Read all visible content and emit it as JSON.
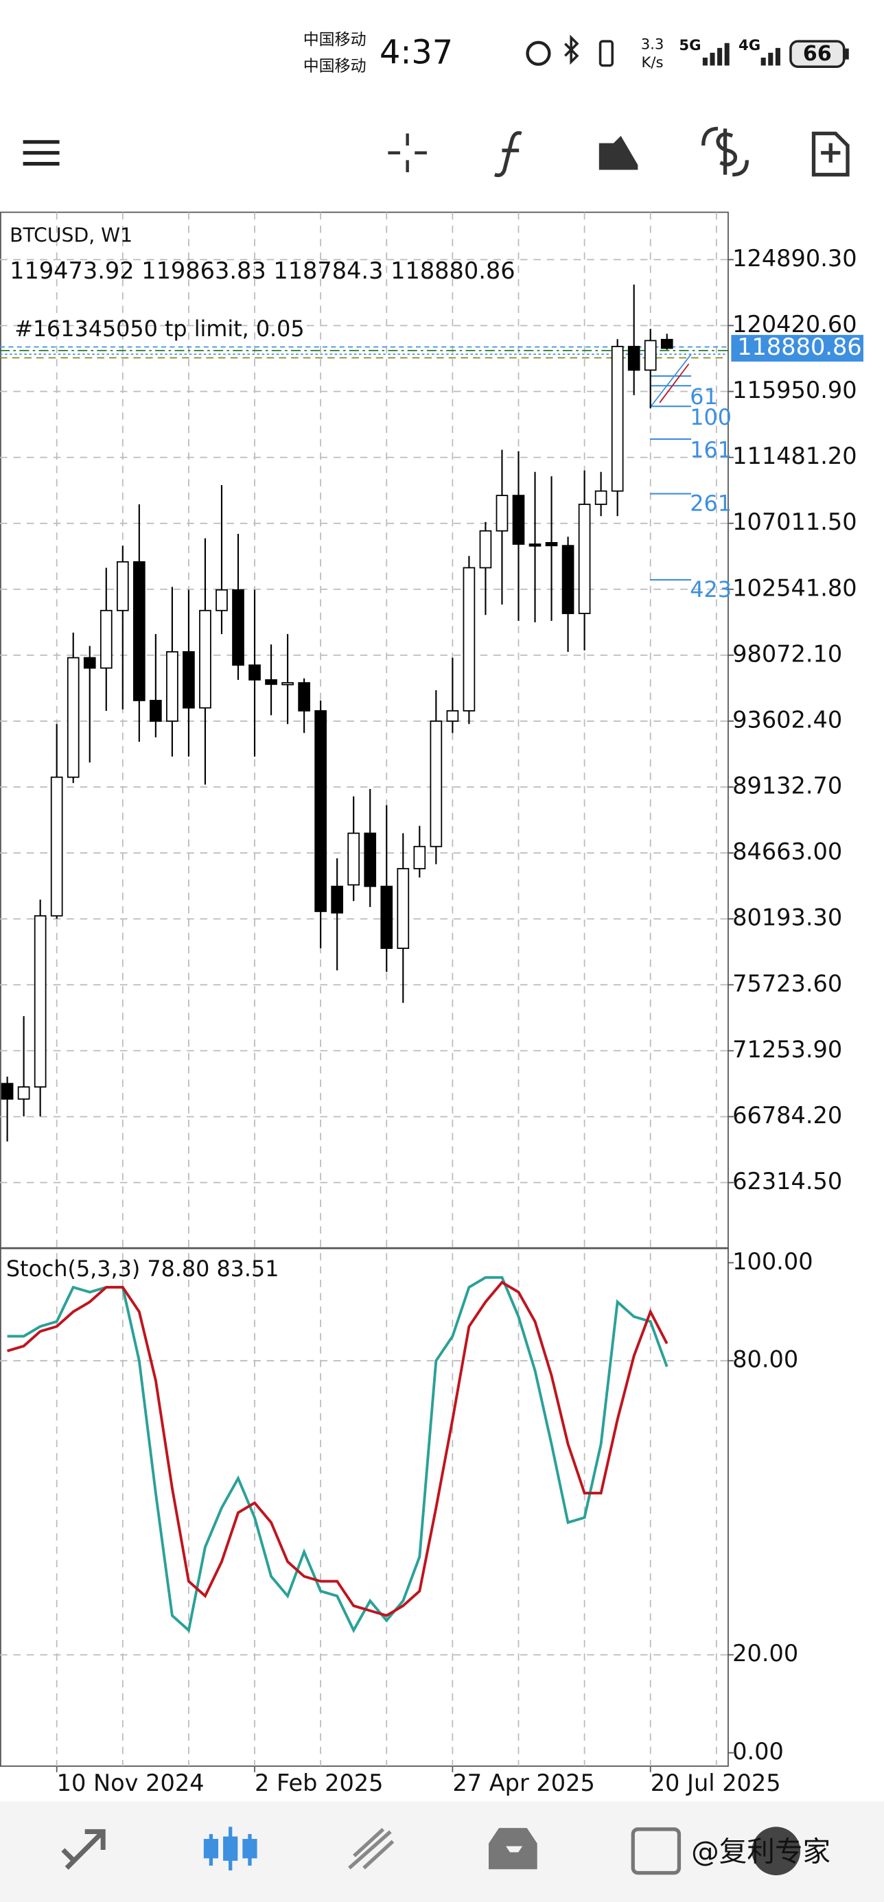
{
  "status_bar": {
    "carrier_1": "中国移动",
    "carrier_2": "中国移动",
    "time": "4:37",
    "speed": "3.3",
    "speed_unit": "K/s",
    "net_1": "5G",
    "net_2": "4G",
    "battery": "66"
  },
  "chart_data": [
    {
      "type": "candlestick",
      "symbol": "BTCUSD, W1",
      "order_label": "#161345050 tp limit, 0.05",
      "categories": [
        null,
        null,
        null,
        "10 Nov 2024",
        null,
        null,
        null,
        null,
        null,
        null,
        null,
        null,
        null,
        null,
        null,
        "2 Feb 2025",
        null,
        null,
        null,
        null,
        null,
        null,
        null,
        null,
        null,
        null,
        null,
        "27 Apr 2025",
        null,
        null,
        null,
        null,
        null,
        null,
        null,
        null,
        null,
        null,
        null,
        "20 Jul 2025",
        null
      ],
      "open": [
        69030,
        67980,
        68800,
        80400,
        89800,
        97900,
        97200,
        101100,
        104400,
        95000,
        93600,
        98300,
        94500,
        101100,
        102500,
        97400,
        96400,
        96100,
        96200,
        94300,
        82400,
        82500,
        86000,
        82400,
        78200,
        83600,
        85100,
        93600,
        94300,
        104000,
        106500,
        108900,
        105600,
        105700,
        105500,
        100900,
        108300,
        109200,
        119000,
        117400,
        119473.92
      ],
      "high": [
        69500,
        73600,
        81500,
        93400,
        99600,
        98700,
        104000,
        105500,
        108300,
        99500,
        102700,
        102500,
        106000,
        109600,
        106300,
        102500,
        98800,
        99500,
        96500,
        95000,
        84300,
        88500,
        89000,
        87900,
        86000,
        86500,
        95700,
        97900,
        104800,
        107100,
        112000,
        111900,
        110500,
        110200,
        106100,
        110600,
        110500,
        119500,
        123200,
        120200,
        119863.83
      ],
      "low": [
        65100,
        66800,
        66800,
        80200,
        89400,
        90800,
        94300,
        94400,
        92200,
        92500,
        91200,
        91200,
        89300,
        99500,
        96400,
        91200,
        94000,
        93400,
        92800,
        78200,
        76700,
        81400,
        81000,
        76600,
        74500,
        83000,
        83900,
        92800,
        93400,
        100800,
        101500,
        100400,
        100300,
        100400,
        98300,
        98400,
        107500,
        107500,
        115700,
        114800,
        118784.3
      ],
      "close": [
        67980,
        68800,
        80400,
        89800,
        97900,
        97200,
        101100,
        104400,
        95000,
        93600,
        98300,
        94500,
        101100,
        102500,
        97400,
        96400,
        96100,
        96200,
        94300,
        80700,
        80600,
        86000,
        82400,
        78200,
        83600,
        85100,
        93600,
        94300,
        104000,
        106500,
        108900,
        105600,
        105500,
        105500,
        100900,
        108300,
        109200,
        119000,
        117400,
        119400,
        118880.86
      ],
      "ylim": [
        57950,
        128100
      ],
      "yticks": [
        {
          "value": 124890.3,
          "label": "124890.30"
        },
        {
          "value": 120420.6,
          "label": "120420.60"
        },
        {
          "value": 115950.9,
          "label": "115950.90"
        },
        {
          "value": 111481.2,
          "label": "111481.20"
        },
        {
          "value": 107011.5,
          "label": "107011.50"
        },
        {
          "value": 102541.8,
          "label": "102541.80"
        },
        {
          "value": 98072.1,
          "label": "98072.10"
        },
        {
          "value": 93602.4,
          "label": "93602.40"
        },
        {
          "value": 89132.7,
          "label": "89132.70"
        },
        {
          "value": 84663,
          "label": "84663.00"
        },
        {
          "value": 80193.3,
          "label": "80193.30"
        },
        {
          "value": 75723.6,
          "label": "75723.60"
        },
        {
          "value": 71253.9,
          "label": "71253.90"
        },
        {
          "value": 66784.2,
          "label": "66784.20"
        },
        {
          "value": 62314.5,
          "label": "62314.50"
        }
      ],
      "grid": true,
      "bull_color": "#ffffff",
      "bear_color": "#000000",
      "price_tag_color": "#3d8fe0",
      "fib_labels": [
        "61",
        "100",
        "161",
        "261",
        "423"
      ],
      "fib_color": "#3d8fe0"
    },
    {
      "type": "line",
      "title": "Stoch(5,3,3)",
      "series": [
        {
          "color": "#2aa198",
          "values": [
            85,
            85,
            87,
            88,
            95,
            94,
            95,
            95,
            80,
            53,
            28,
            25,
            42,
            50,
            56,
            48,
            36,
            32,
            41,
            33,
            32,
            25,
            31,
            27,
            31,
            40,
            80,
            85,
            95,
            97,
            97,
            89,
            78,
            63,
            47,
            48,
            63,
            92,
            89,
            88,
            78.8
          ]
        },
        {
          "color": "#c0141e",
          "values": [
            82,
            83,
            86,
            87,
            90,
            92,
            95,
            95,
            90,
            76,
            54,
            35,
            32,
            39,
            49,
            51,
            47,
            39,
            36,
            35,
            35,
            30,
            29,
            28,
            30,
            33,
            50,
            68,
            87,
            92,
            96,
            94,
            88,
            77,
            63,
            53,
            53,
            68,
            81,
            90,
            83.51
          ]
        }
      ],
      "ylim": [
        0,
        100
      ],
      "yticks": [
        {
          "value": 100,
          "label": "100.00"
        },
        {
          "value": 80,
          "label": "80.00"
        },
        {
          "value": 20,
          "label": "20.00"
        },
        {
          "value": 0,
          "label": "0.00"
        }
      ],
      "grid_levels": [
        80,
        20
      ]
    }
  ],
  "watermark": "@复利专家"
}
